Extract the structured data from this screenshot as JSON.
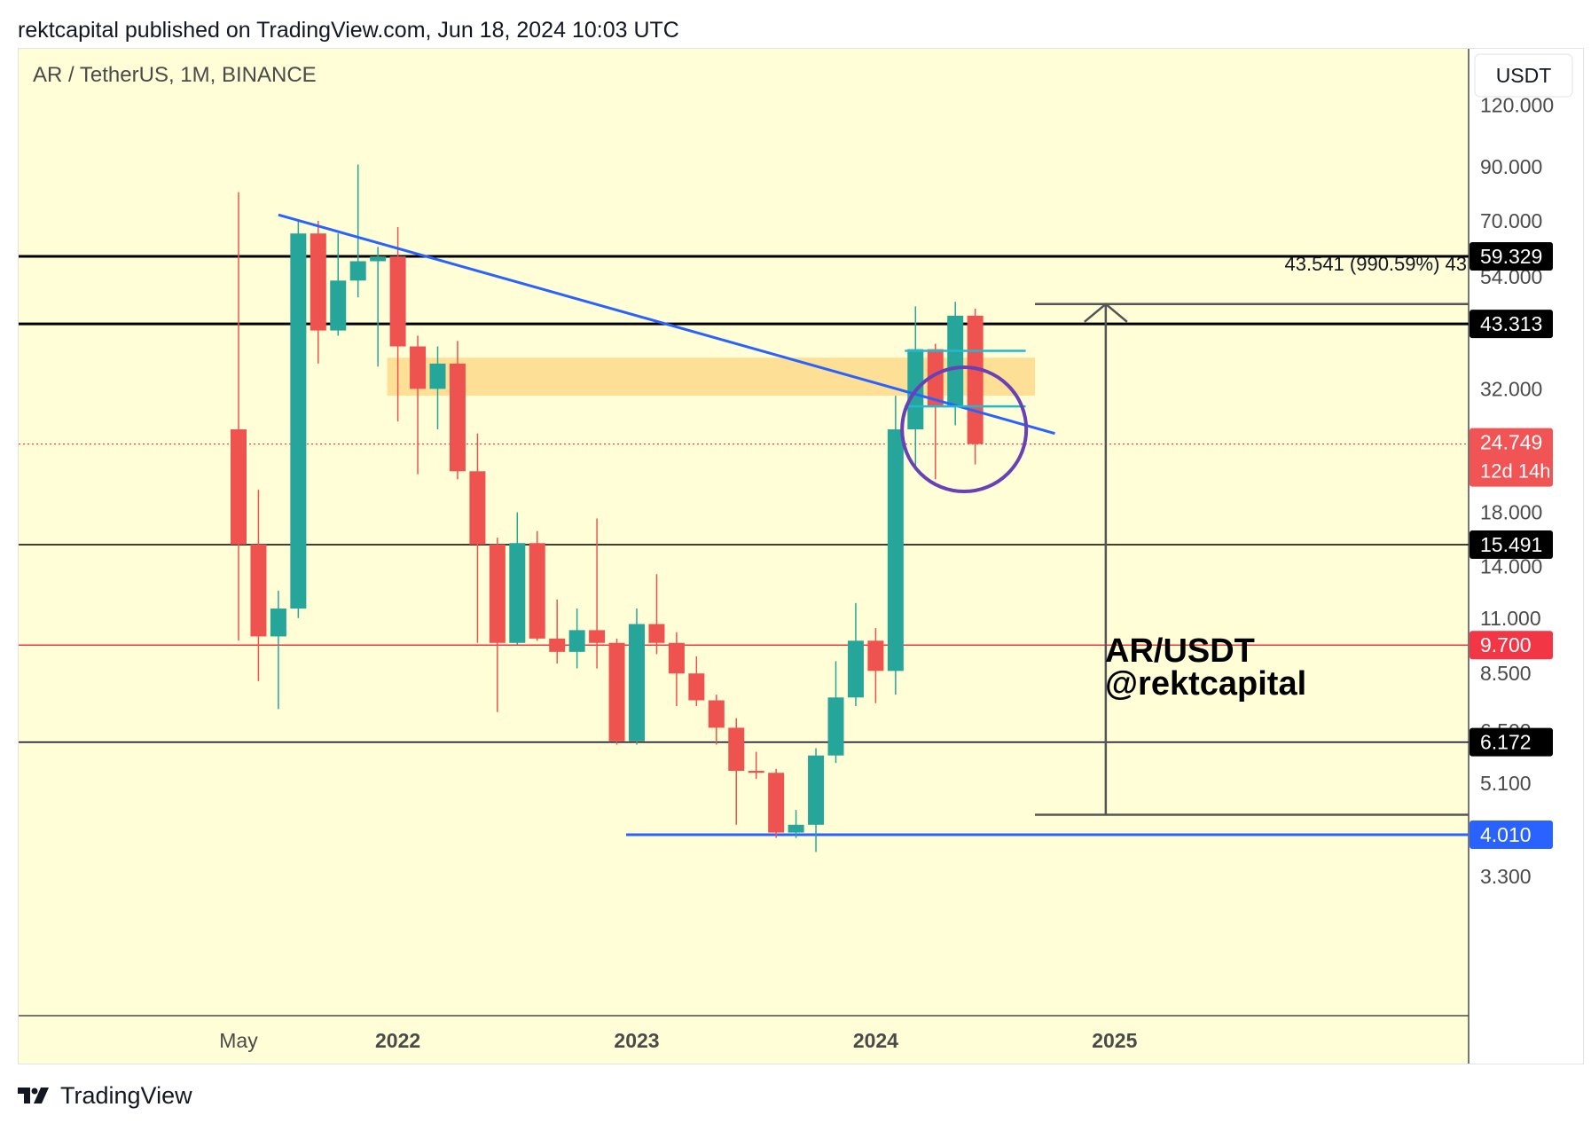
{
  "header": {
    "published": "rektcapital published on TradingView.com, Jun 18, 2024 10:03 UTC"
  },
  "footer": {
    "brand": "TradingView"
  },
  "chart_data": {
    "type": "candlestick",
    "title": "AR / TetherUS, 1M, BINANCE",
    "currency": "USDT",
    "y_scale": "log",
    "y_ticks": [
      "120.000",
      "90.000",
      "70.000",
      "54.000",
      "32.000",
      "18.000",
      "14.000",
      "11.000",
      "8.500",
      "6.500",
      "5.100",
      "3.300"
    ],
    "x_ticks": [
      "May",
      "2022",
      "2023",
      "2024",
      "2025"
    ],
    "price_labels": [
      {
        "label": "59.329",
        "color": "#000000",
        "value": 59.329
      },
      {
        "label": "43.313",
        "color": "#000000",
        "value": 43.313
      },
      {
        "label": "24.749",
        "color": "#f05454",
        "value": 24.749,
        "sub": "12d 14h"
      },
      {
        "label": "15.491",
        "color": "#000000",
        "value": 15.491
      },
      {
        "label": "9.700",
        "color": "#f23645",
        "value": 9.7
      },
      {
        "label": "6.172",
        "color": "#000000",
        "value": 6.172
      },
      {
        "label": "4.010",
        "color": "#2962ff",
        "value": 4.01
      }
    ],
    "horizontal_levels": [
      {
        "value": 59.329,
        "color": "#000000",
        "width": "thick"
      },
      {
        "value": 43.313,
        "color": "#000000",
        "width": "thick"
      },
      {
        "value": 15.491,
        "color": "#000000",
        "width": "thin"
      },
      {
        "value": 9.7,
        "color": "#f23645",
        "width": "thin"
      },
      {
        "value": 6.172,
        "color": "#000000",
        "width": "thin"
      },
      {
        "value": 4.01,
        "color": "#2962ff",
        "width": "medium",
        "from": "2023-01"
      },
      {
        "value": 24.749,
        "color": "#f23645",
        "width": "dotted"
      }
    ],
    "zone": {
      "from": "2022-01",
      "to": "2024-09",
      "low": 31,
      "high": 37,
      "color": "#fdd98a"
    },
    "trendline": {
      "from": {
        "date": "2021-07",
        "price": 72
      },
      "to": {
        "date": "2024-10",
        "price": 26
      },
      "color": "#2962ff"
    },
    "consolidation_lines": {
      "upper": 38.2,
      "lower": 29.5,
      "from": "2024-03",
      "to": "2024-08",
      "color": "#22b8cf"
    },
    "circle": {
      "date": "2024-05",
      "price": 26.5,
      "color": "#6741b5"
    },
    "measure": {
      "label": "43.541 (990.59%) 43",
      "low": 4.4,
      "high": 47.5,
      "date_from": "2024-09",
      "date_to": "2025-03"
    },
    "annotation": {
      "line1": "AR/USDT",
      "line2": "@rektcapital"
    },
    "candles": [
      {
        "date": "2021-05",
        "o": 26.5,
        "h": 80,
        "l": 9.9,
        "c": 15.5
      },
      {
        "date": "2021-06",
        "o": 15.5,
        "h": 20,
        "l": 8.2,
        "c": 10.1
      },
      {
        "date": "2021-07",
        "o": 10.1,
        "h": 12.5,
        "l": 7.2,
        "c": 11.5
      },
      {
        "date": "2021-08",
        "o": 11.5,
        "h": 70,
        "l": 11,
        "c": 66
      },
      {
        "date": "2021-09",
        "o": 66,
        "h": 70,
        "l": 36,
        "c": 42
      },
      {
        "date": "2021-10",
        "o": 42,
        "h": 66,
        "l": 41,
        "c": 53
      },
      {
        "date": "2021-11",
        "o": 53,
        "h": 91,
        "l": 49,
        "c": 58
      },
      {
        "date": "2021-12",
        "o": 58,
        "h": 62,
        "l": 35.5,
        "c": 59.3
      },
      {
        "date": "2022-01",
        "o": 59.3,
        "h": 68,
        "l": 27.5,
        "c": 39
      },
      {
        "date": "2022-02",
        "o": 39,
        "h": 41,
        "l": 21.5,
        "c": 32
      },
      {
        "date": "2022-03",
        "o": 32,
        "h": 39,
        "l": 26.5,
        "c": 36
      },
      {
        "date": "2022-04",
        "o": 36,
        "h": 40,
        "l": 21,
        "c": 21.8
      },
      {
        "date": "2022-05",
        "o": 21.8,
        "h": 26,
        "l": 9.8,
        "c": 15.5
      },
      {
        "date": "2022-06",
        "o": 15.5,
        "h": 16,
        "l": 7.1,
        "c": 9.8
      },
      {
        "date": "2022-07",
        "o": 9.8,
        "h": 18,
        "l": 9.7,
        "c": 15.6
      },
      {
        "date": "2022-08",
        "o": 15.6,
        "h": 16.5,
        "l": 9.9,
        "c": 10.0
      },
      {
        "date": "2022-09",
        "o": 10.0,
        "h": 12,
        "l": 8.9,
        "c": 9.4
      },
      {
        "date": "2022-10",
        "o": 9.4,
        "h": 11.5,
        "l": 8.7,
        "c": 10.4
      },
      {
        "date": "2022-11",
        "o": 10.4,
        "h": 17.5,
        "l": 8.7,
        "c": 9.8
      },
      {
        "date": "2022-12",
        "o": 9.8,
        "h": 10,
        "l": 6.1,
        "c": 6.2
      },
      {
        "date": "2023-01",
        "o": 6.2,
        "h": 11.5,
        "l": 6.1,
        "c": 10.7
      },
      {
        "date": "2023-02",
        "o": 10.7,
        "h": 13.5,
        "l": 9.3,
        "c": 9.8
      },
      {
        "date": "2023-03",
        "o": 9.8,
        "h": 10.3,
        "l": 7.3,
        "c": 8.5
      },
      {
        "date": "2023-04",
        "o": 8.5,
        "h": 9.2,
        "l": 7.3,
        "c": 7.5
      },
      {
        "date": "2023-05",
        "o": 7.5,
        "h": 7.7,
        "l": 6.1,
        "c": 6.6
      },
      {
        "date": "2023-06",
        "o": 6.6,
        "h": 6.9,
        "l": 4.2,
        "c": 5.4
      },
      {
        "date": "2023-07",
        "o": 5.4,
        "h": 5.9,
        "l": 5.2,
        "c": 5.35
      },
      {
        "date": "2023-08",
        "o": 5.35,
        "h": 5.45,
        "l": 3.95,
        "c": 4.05
      },
      {
        "date": "2023-09",
        "o": 4.05,
        "h": 4.5,
        "l": 3.95,
        "c": 4.2
      },
      {
        "date": "2023-10",
        "o": 4.2,
        "h": 6.0,
        "l": 3.7,
        "c": 5.8
      },
      {
        "date": "2023-11",
        "o": 5.8,
        "h": 9.0,
        "l": 5.6,
        "c": 7.6
      },
      {
        "date": "2023-12",
        "o": 7.6,
        "h": 11.8,
        "l": 7.3,
        "c": 9.9
      },
      {
        "date": "2024-01",
        "o": 9.9,
        "h": 10.5,
        "l": 7.4,
        "c": 8.6
      },
      {
        "date": "2024-02",
        "o": 8.6,
        "h": 31,
        "l": 7.7,
        "c": 26.5
      },
      {
        "date": "2024-03",
        "o": 26.5,
        "h": 47,
        "l": 22,
        "c": 38.5
      },
      {
        "date": "2024-04",
        "o": 38.5,
        "h": 39.5,
        "l": 21,
        "c": 29.5
      },
      {
        "date": "2024-05",
        "o": 29.5,
        "h": 48,
        "l": 27,
        "c": 45
      },
      {
        "date": "2024-06",
        "o": 45,
        "h": 46.5,
        "l": 22.5,
        "c": 24.749
      }
    ]
  }
}
